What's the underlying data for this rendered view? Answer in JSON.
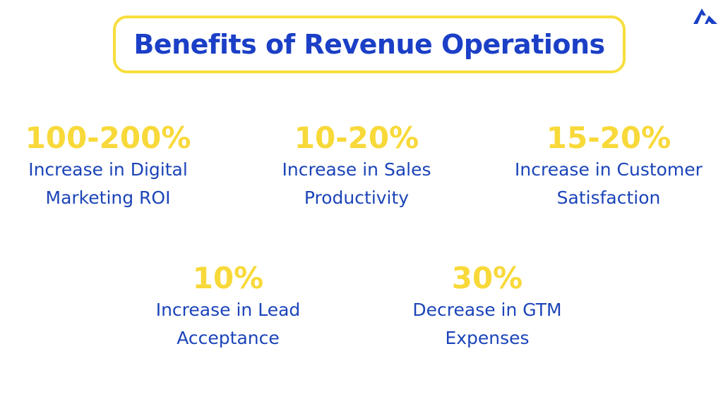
{
  "header": {
    "title": "Benefits of Revenue Operations"
  },
  "stats": [
    {
      "value": "100-200%",
      "label_lines": [
        "Increase in Digital",
        "Marketing ROI"
      ]
    },
    {
      "value": "10-20%",
      "label_lines": [
        "Increase in Sales",
        "Productivity"
      ]
    },
    {
      "value": "15-20%",
      "label_lines": [
        "Increase in Customer",
        "Satisfaction"
      ]
    },
    {
      "value": "10%",
      "label_lines": [
        "Increase in Lead",
        "Acceptance"
      ]
    },
    {
      "value": "30%",
      "label_lines": [
        "Decrease in GTM",
        "Expenses"
      ]
    }
  ]
}
